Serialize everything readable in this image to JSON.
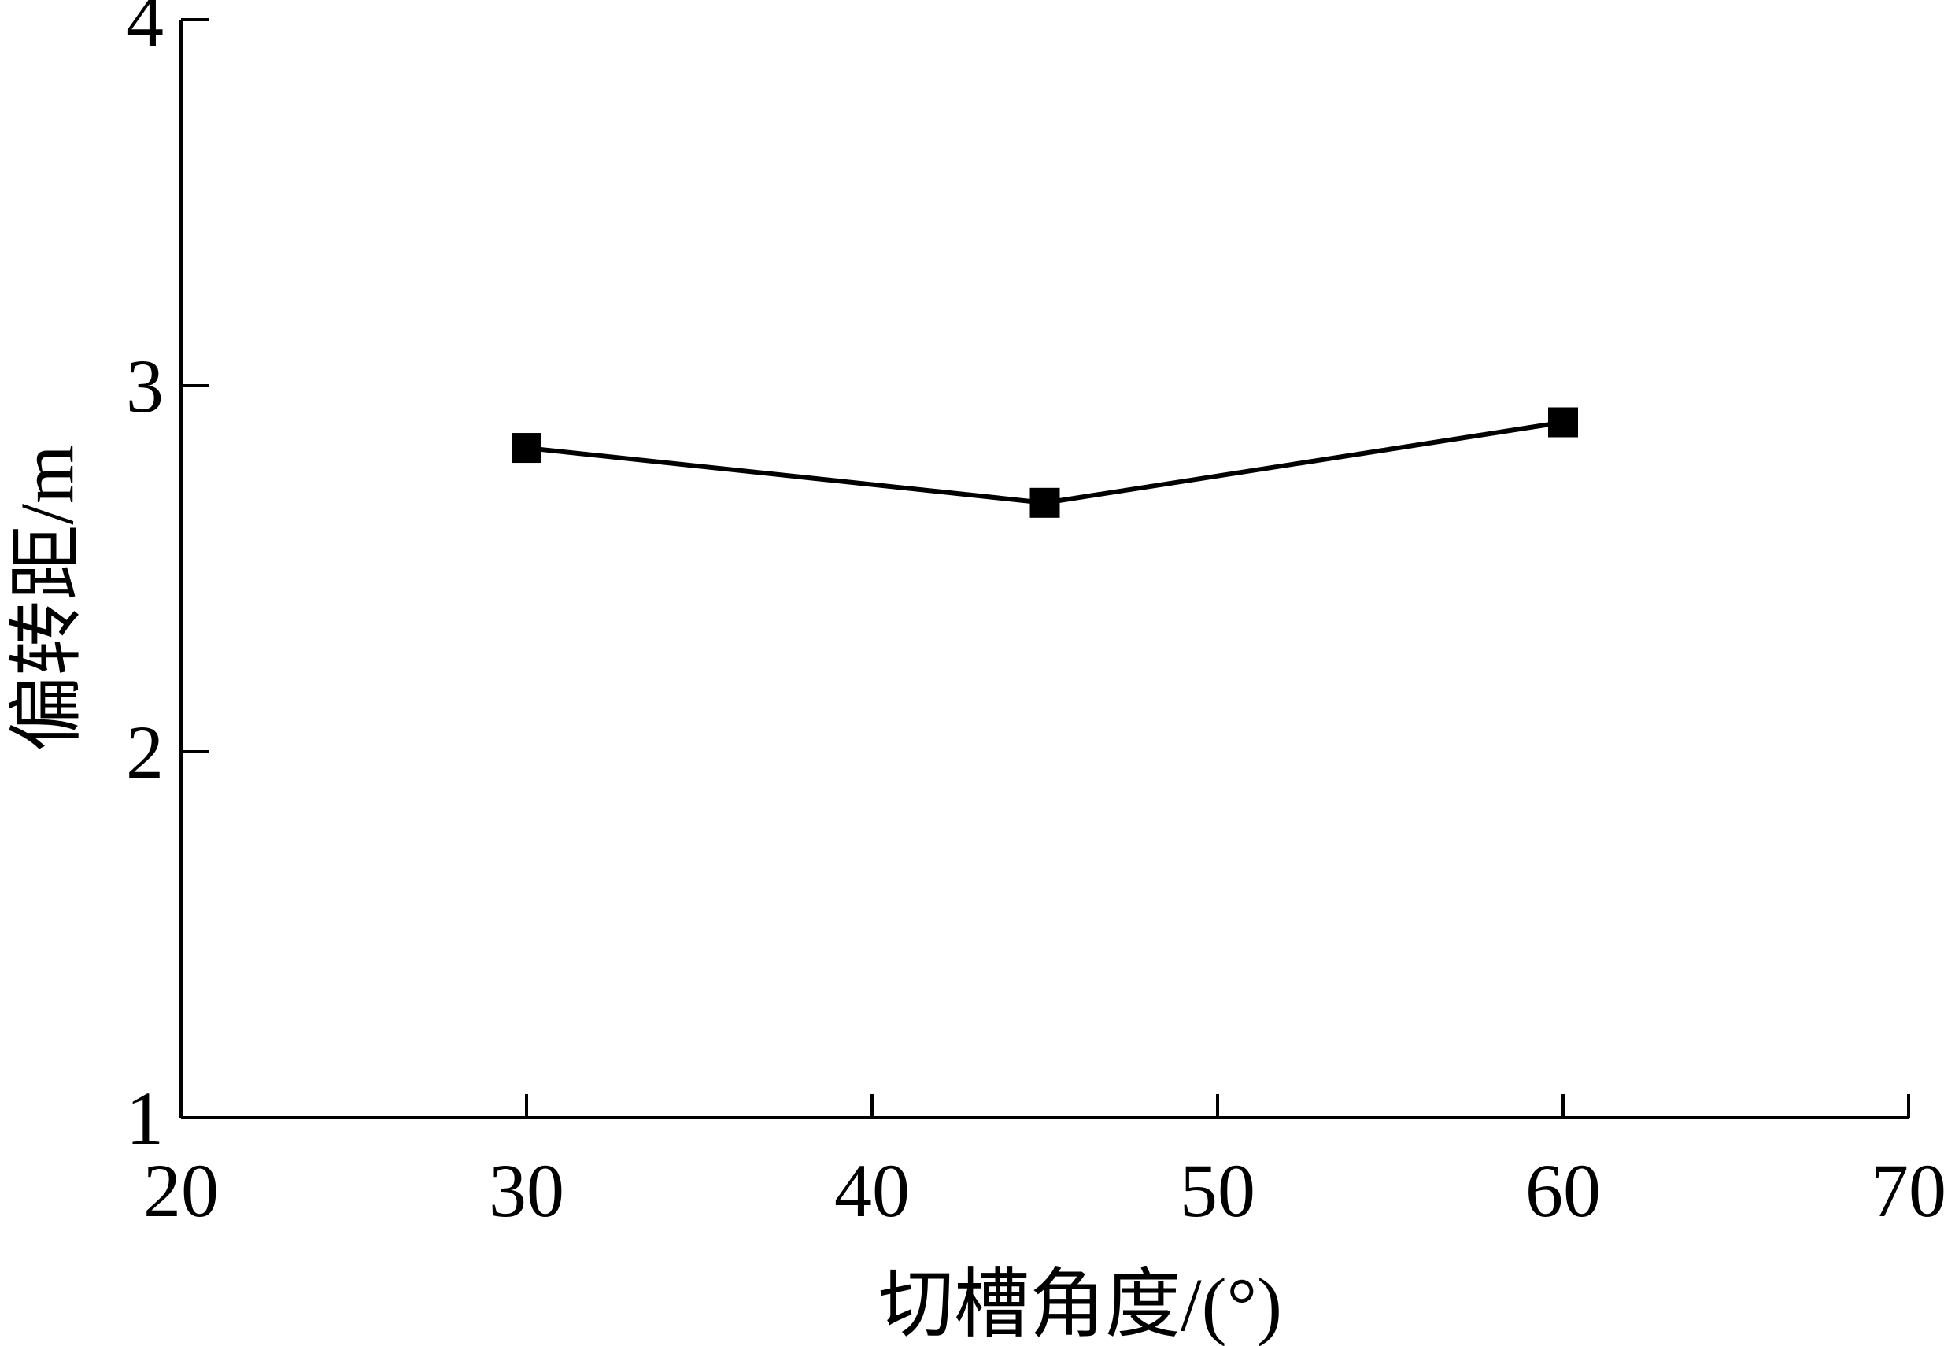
{
  "chart_data": {
    "type": "line",
    "title": "",
    "xlabel": "切槽角度/(°)",
    "ylabel": "偏转距/m",
    "xlim": [
      20,
      70
    ],
    "ylim": [
      1,
      4
    ],
    "x_ticks": [
      20,
      30,
      40,
      50,
      60,
      70
    ],
    "y_ticks": [
      1,
      2,
      3,
      4
    ],
    "grid": false,
    "series": [
      {
        "marker": "square",
        "color": "#000000",
        "x": [
          30,
          45,
          60
        ],
        "y": [
          2.83,
          2.68,
          2.9
        ]
      }
    ]
  }
}
